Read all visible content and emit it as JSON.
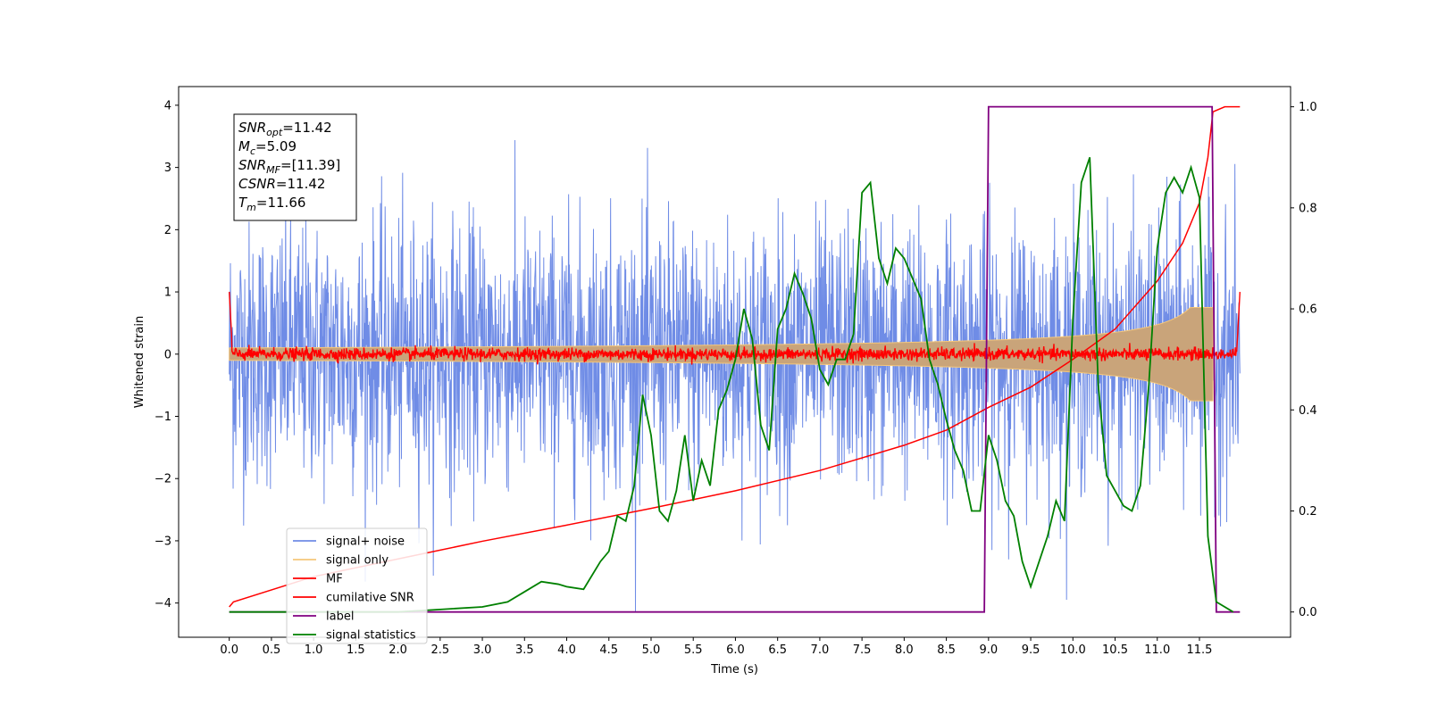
{
  "chart_data": {
    "type": "line",
    "xlabel": "Time (s)",
    "ylabel_left": "Whitened strain",
    "ylabel_right": "",
    "xlim": [
      -0.6,
      12.58
    ],
    "ylim_left": [
      -4.55,
      4.3
    ],
    "ylim_right": [
      -0.05,
      1.04
    ],
    "x_ticks": [
      "0.0",
      "0.5",
      "1.0",
      "1.5",
      "2.0",
      "2.5",
      "3.0",
      "3.5",
      "4.0",
      "4.5",
      "5.0",
      "5.5",
      "6.0",
      "6.5",
      "7.0",
      "7.5",
      "8.0",
      "8.5",
      "9.0",
      "9.5",
      "10.0",
      "10.5",
      "11.0",
      "11.5"
    ],
    "y_ticks_left": [
      "4",
      "3",
      "2",
      "1",
      "0",
      "−1",
      "−2",
      "−3",
      "−4"
    ],
    "y_ticks_right": [
      "1.0",
      "0.8",
      "0.6",
      "0.4",
      "0.2",
      "0.0"
    ],
    "grid": false,
    "legend_placement": "lower-left",
    "colors": {
      "signal_noise": "#6f8ce6",
      "signal_only": "#f5c77a",
      "signal_only_fill": "#c9a47a",
      "mf": "#ff0000",
      "csnr": "#ff0000",
      "label": "#800080",
      "stat": "#008000"
    },
    "series": [
      {
        "name": "signal+ noise",
        "axis": "left",
        "description": "whitened noise, amplitude ~±3.5",
        "x_range": [
          0.0,
          11.98
        ]
      },
      {
        "name": "signal only",
        "axis": "left",
        "description": "chirp envelope growing to ~±0.75 at 11.66 s",
        "x_range": [
          0.0,
          11.66
        ]
      },
      {
        "name": "MF",
        "axis": "left",
        "description": "matched-filter output fluctuating around 0 (~±0.15)",
        "x_range": [
          0.0,
          11.98
        ]
      },
      {
        "name": "cumilative SNR",
        "axis": "right",
        "x": [
          0.0,
          0.05,
          1.0,
          2.0,
          3.0,
          4.0,
          5.0,
          6.0,
          7.0,
          8.0,
          8.5,
          9.0,
          9.5,
          10.0,
          10.5,
          11.0,
          11.3,
          11.5,
          11.6,
          11.66,
          11.8,
          11.98
        ],
        "y": [
          0.01,
          0.02,
          0.07,
          0.105,
          0.14,
          0.172,
          0.205,
          0.24,
          0.28,
          0.33,
          0.36,
          0.405,
          0.445,
          0.5,
          0.56,
          0.655,
          0.73,
          0.81,
          0.9,
          0.99,
          1.0,
          1.0
        ]
      },
      {
        "name": "label",
        "axis": "right",
        "x": [
          0.0,
          8.95,
          9.0,
          11.65,
          11.7,
          11.98
        ],
        "y": [
          0.0,
          0.0,
          1.0,
          1.0,
          0.0,
          0.0
        ]
      },
      {
        "name": "signal statistics",
        "axis": "right",
        "x": [
          0.0,
          1.0,
          2.0,
          2.5,
          3.0,
          3.3,
          3.5,
          3.7,
          3.9,
          4.0,
          4.2,
          4.4,
          4.5,
          4.6,
          4.7,
          4.8,
          4.9,
          5.0,
          5.1,
          5.2,
          5.3,
          5.4,
          5.5,
          5.6,
          5.7,
          5.8,
          5.9,
          6.0,
          6.1,
          6.2,
          6.3,
          6.4,
          6.5,
          6.6,
          6.7,
          6.8,
          6.9,
          7.0,
          7.1,
          7.2,
          7.3,
          7.4,
          7.5,
          7.6,
          7.7,
          7.8,
          7.9,
          8.0,
          8.1,
          8.2,
          8.3,
          8.4,
          8.5,
          8.6,
          8.7,
          8.8,
          8.9,
          9.0,
          9.1,
          9.2,
          9.3,
          9.4,
          9.5,
          9.6,
          9.7,
          9.8,
          9.9,
          10.0,
          10.1,
          10.2,
          10.3,
          10.4,
          10.5,
          10.6,
          10.7,
          10.8,
          10.9,
          11.0,
          11.1,
          11.2,
          11.3,
          11.4,
          11.5,
          11.6,
          11.7,
          11.9
        ],
        "y": [
          0.0,
          0.0,
          0.0,
          0.005,
          0.01,
          0.02,
          0.04,
          0.06,
          0.055,
          0.05,
          0.045,
          0.1,
          0.12,
          0.19,
          0.18,
          0.25,
          0.43,
          0.35,
          0.2,
          0.18,
          0.24,
          0.35,
          0.22,
          0.3,
          0.25,
          0.4,
          0.44,
          0.5,
          0.6,
          0.54,
          0.37,
          0.32,
          0.56,
          0.6,
          0.67,
          0.63,
          0.58,
          0.48,
          0.45,
          0.5,
          0.5,
          0.55,
          0.83,
          0.85,
          0.7,
          0.65,
          0.72,
          0.7,
          0.66,
          0.62,
          0.5,
          0.45,
          0.38,
          0.32,
          0.28,
          0.2,
          0.2,
          0.35,
          0.3,
          0.22,
          0.19,
          0.1,
          0.05,
          0.1,
          0.15,
          0.22,
          0.18,
          0.58,
          0.85,
          0.9,
          0.45,
          0.27,
          0.24,
          0.21,
          0.2,
          0.25,
          0.45,
          0.72,
          0.83,
          0.86,
          0.83,
          0.88,
          0.82,
          0.15,
          0.02,
          0.0
        ]
      }
    ]
  },
  "annotation_box": {
    "lines": [
      {
        "main": "SNR",
        "sub": "opt",
        "rest": "=11.42"
      },
      {
        "main": "M",
        "sub": "c",
        "rest": "=5.09"
      },
      {
        "main": "SNR",
        "sub": "MF",
        "rest": "=[11.39]"
      },
      {
        "main": "CSNR",
        "sub": "",
        "rest": "=11.42"
      },
      {
        "main": "T",
        "sub": "m",
        "rest": "=11.66"
      }
    ]
  },
  "legend": {
    "entries": [
      {
        "label": "signal+ noise",
        "color": "#6f8ce6"
      },
      {
        "label": "signal only",
        "color": "#f5c77a"
      },
      {
        "label": "MF",
        "color": "#ff0000"
      },
      {
        "label": "cumilative SNR",
        "color": "#ff0000"
      },
      {
        "label": "label",
        "color": "#800080"
      },
      {
        "label": "signal statistics",
        "color": "#008000"
      }
    ]
  }
}
